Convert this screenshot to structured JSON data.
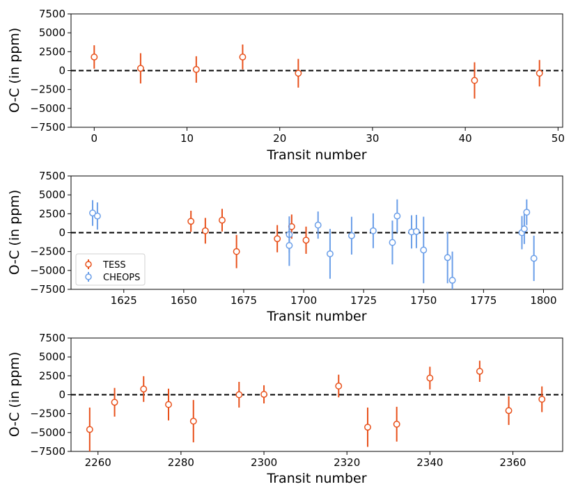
{
  "chart_data": [
    {
      "type": "scatter",
      "xlabel": "Transit number",
      "ylabel": "O-C (in ppm)",
      "xlim": [
        -2.5,
        50.5
      ],
      "ylim": [
        -7500,
        7500
      ],
      "xticks": [
        "0",
        "10",
        "20",
        "30",
        "40",
        "50"
      ],
      "xtick_values": [
        0,
        10,
        20,
        30,
        40,
        50
      ],
      "yticks": [
        "7500",
        "5000",
        "2500",
        "0",
        "−2500",
        "−5000",
        "−7500"
      ],
      "ytick_values": [
        7500,
        5000,
        2500,
        0,
        -2500,
        -5000,
        -7500
      ],
      "zero_line": 0,
      "legend": null,
      "series": [
        {
          "name": "TESS",
          "color": "#e8501a",
          "points": [
            {
              "x": 0,
              "y": 1800,
              "err": 1550
            },
            {
              "x": 5,
              "y": 300,
              "err": 2000
            },
            {
              "x": 11,
              "y": 150,
              "err": 1750
            },
            {
              "x": 16,
              "y": 1800,
              "err": 1650
            },
            {
              "x": 22,
              "y": -350,
              "err": 1900
            },
            {
              "x": 41,
              "y": -1300,
              "err": 2400
            },
            {
              "x": 48,
              "y": -350,
              "err": 1750
            }
          ]
        }
      ]
    },
    {
      "type": "scatter",
      "xlabel": "Transit number",
      "ylabel": "O-C (in ppm)",
      "xlim": [
        1603,
        1808
      ],
      "ylim": [
        -7500,
        7500
      ],
      "xticks": [
        "1625",
        "1650",
        "1675",
        "1700",
        "1725",
        "1750",
        "1775",
        "1800"
      ],
      "xtick_values": [
        1625,
        1650,
        1675,
        1700,
        1725,
        1750,
        1775,
        1800
      ],
      "yticks": [
        "7500",
        "5000",
        "2500",
        "0",
        "−2500",
        "−5000",
        "−7500"
      ],
      "ytick_values": [
        7500,
        5000,
        2500,
        0,
        -2500,
        -5000,
        -7500
      ],
      "zero_line": 0,
      "legend": {
        "position": "lower-left",
        "entries": [
          "TESS",
          "CHEOPS"
        ]
      },
      "series": [
        {
          "name": "TESS",
          "color": "#e8501a",
          "points": [
            {
              "x": 1653,
              "y": 1500,
              "err": 1400
            },
            {
              "x": 1659,
              "y": 250,
              "err": 1700
            },
            {
              "x": 1666,
              "y": 1650,
              "err": 1500
            },
            {
              "x": 1672,
              "y": -2500,
              "err": 2200
            },
            {
              "x": 1689,
              "y": -800,
              "err": 1800
            },
            {
              "x": 1695,
              "y": 800,
              "err": 1600
            },
            {
              "x": 1701,
              "y": -1000,
              "err": 1800
            }
          ]
        },
        {
          "name": "CHEOPS",
          "color": "#6a9ee8",
          "points": [
            {
              "x": 1612,
              "y": 2600,
              "err": 1700
            },
            {
              "x": 1614,
              "y": 2200,
              "err": 1800
            },
            {
              "x": 1694,
              "y": -250,
              "err": 2400
            },
            {
              "x": 1694,
              "y": -1700,
              "err": 2700
            },
            {
              "x": 1706,
              "y": 1000,
              "err": 1800
            },
            {
              "x": 1711,
              "y": -2800,
              "err": 3300
            },
            {
              "x": 1720,
              "y": -400,
              "err": 2500
            },
            {
              "x": 1729,
              "y": 250,
              "err": 2300
            },
            {
              "x": 1737,
              "y": -1300,
              "err": 2900
            },
            {
              "x": 1739,
              "y": 2200,
              "err": 2200
            },
            {
              "x": 1745,
              "y": 100,
              "err": 2200
            },
            {
              "x": 1747,
              "y": 150,
              "err": 2200
            },
            {
              "x": 1750,
              "y": -2300,
              "err": 4400
            },
            {
              "x": 1760,
              "y": -3300,
              "err": 3400
            },
            {
              "x": 1762,
              "y": -6300,
              "err": 3800
            },
            {
              "x": 1791,
              "y": 0,
              "err": 2200
            },
            {
              "x": 1792,
              "y": 500,
              "err": 2000
            },
            {
              "x": 1793,
              "y": 2700,
              "err": 1700
            },
            {
              "x": 1796,
              "y": -3400,
              "err": 3000
            }
          ]
        }
      ]
    },
    {
      "type": "scatter",
      "xlabel": "Transit number",
      "ylabel": "O-C (in ppm)",
      "xlim": [
        2253.5,
        2372
      ],
      "ylim": [
        -7500,
        7500
      ],
      "xticks": [
        "2260",
        "2280",
        "2300",
        "2320",
        "2340",
        "2360"
      ],
      "xtick_values": [
        2260,
        2280,
        2300,
        2320,
        2340,
        2360
      ],
      "yticks": [
        "7500",
        "5000",
        "2500",
        "0",
        "−2500",
        "−5000",
        "−7500"
      ],
      "ytick_values": [
        7500,
        5000,
        2500,
        0,
        -2500,
        -5000,
        -7500
      ],
      "zero_line": 0,
      "legend": null,
      "series": [
        {
          "name": "TESS",
          "color": "#e8501a",
          "points": [
            {
              "x": 2258,
              "y": -4600,
              "err": 2900
            },
            {
              "x": 2264,
              "y": -1000,
              "err": 1900
            },
            {
              "x": 2271,
              "y": 750,
              "err": 1700
            },
            {
              "x": 2277,
              "y": -1300,
              "err": 2100
            },
            {
              "x": 2283,
              "y": -3500,
              "err": 2800
            },
            {
              "x": 2294,
              "y": 0,
              "err": 1700
            },
            {
              "x": 2300,
              "y": 50,
              "err": 1200
            },
            {
              "x": 2318,
              "y": 1150,
              "err": 1500
            },
            {
              "x": 2325,
              "y": -4300,
              "err": 2600
            },
            {
              "x": 2332,
              "y": -3900,
              "err": 2300
            },
            {
              "x": 2340,
              "y": 2200,
              "err": 1500
            },
            {
              "x": 2352,
              "y": 3100,
              "err": 1400
            },
            {
              "x": 2359,
              "y": -2100,
              "err": 1900
            },
            {
              "x": 2367,
              "y": -600,
              "err": 1700
            }
          ]
        }
      ]
    }
  ]
}
